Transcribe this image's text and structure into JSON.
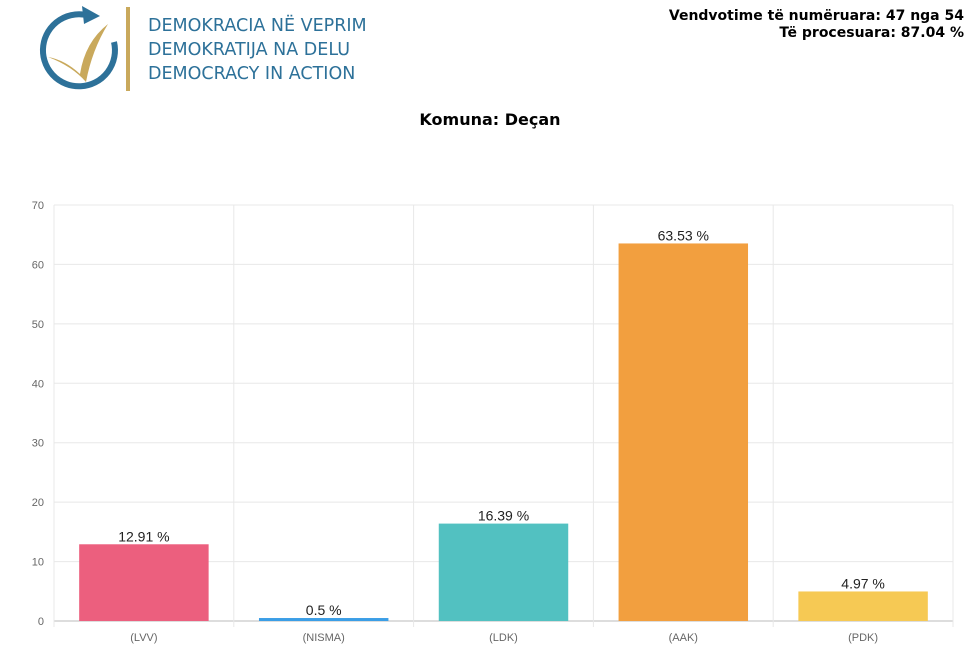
{
  "logo": {
    "lines": [
      "DEMOKRACIA NË VEPRIM",
      "DEMOKRATIJA NA DELU",
      "DEMOCRACY IN ACTION"
    ],
    "colors": {
      "ring": "#2d7199",
      "check": "#c9a95c"
    }
  },
  "stats": {
    "counted": "Vendvotime të numëruara: 47 nga 54",
    "processed": "Të procesuara: 87.04 %"
  },
  "chart_data": {
    "type": "bar",
    "title": "Komuna: Deçan",
    "categories": [
      "(LVV)",
      "(NISMA)",
      "(LDK)",
      "(AAK)",
      "(PDK)"
    ],
    "values": [
      12.91,
      0.5,
      16.39,
      63.53,
      4.97
    ],
    "data_labels": [
      "12.91 %",
      "0.5 %",
      "16.39 %",
      "63.53 %",
      "4.97 %"
    ],
    "colors": [
      "#ec5f7e",
      "#3b9ee6",
      "#52c1c1",
      "#f29f3f",
      "#f6c954"
    ],
    "ylim": [
      0,
      70
    ],
    "yticks": [
      0,
      10,
      20,
      30,
      40,
      50,
      60,
      70
    ],
    "grid": true,
    "legend": "none"
  }
}
